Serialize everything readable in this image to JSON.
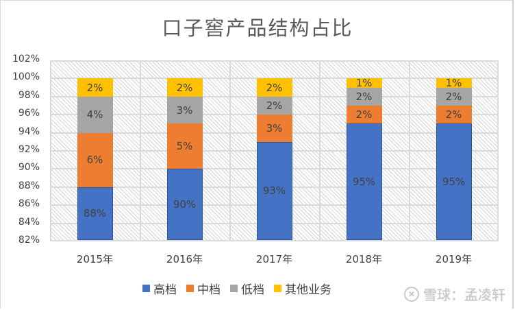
{
  "chart_data": {
    "type": "bar",
    "stacked": true,
    "title": "口子窖产品结构占比",
    "xlabel": "",
    "ylabel": "",
    "categories": [
      "2015年",
      "2016年",
      "2017年",
      "2018年",
      "2019年"
    ],
    "series": [
      {
        "name": "高档",
        "color": "#4472C4",
        "values": [
          88,
          90,
          93,
          95,
          95
        ],
        "labels": [
          "88%",
          "90%",
          "93%",
          "95%",
          "95%"
        ]
      },
      {
        "name": "中档",
        "color": "#ED7D31",
        "values": [
          6,
          5,
          3,
          2,
          2
        ],
        "labels": [
          "6%",
          "5%",
          "3%",
          "2%",
          "2%"
        ]
      },
      {
        "name": "低档",
        "color": "#A5A5A5",
        "values": [
          4,
          3,
          2,
          2,
          2
        ],
        "labels": [
          "4%",
          "3%",
          "2%",
          "2%",
          "2%"
        ]
      },
      {
        "name": "其他业务",
        "color": "#FFC000",
        "values": [
          2,
          2,
          2,
          1,
          1
        ],
        "labels": [
          "2%",
          "2%",
          "2%",
          "1%",
          "1%"
        ]
      }
    ],
    "ylim": [
      82,
      102
    ],
    "yticks": [
      "82%",
      "84%",
      "86%",
      "88%",
      "90%",
      "92%",
      "94%",
      "96%",
      "98%",
      "100%",
      "102%"
    ],
    "grid": true,
    "legend_position": "bottom"
  },
  "watermark": {
    "text": "雪球：孟凌轩"
  }
}
